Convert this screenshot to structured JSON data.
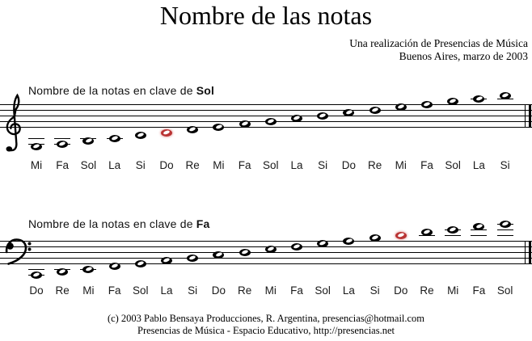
{
  "title": "Nombre de las notas",
  "subtitle": {
    "line1": "Una realización de Presencias de Música",
    "line2": "Buenos Aires, marzo de 2003"
  },
  "staves": [
    {
      "name": "sol",
      "clef": "treble",
      "header_prefix": "Nombre de la notas en clave de ",
      "clef_label": "Sol",
      "notes": [
        "Mi",
        "Fa",
        "Sol",
        "La",
        "Si",
        "Do",
        "Re",
        "Mi",
        "Fa",
        "Sol",
        "La",
        "Si",
        "Do",
        "Re",
        "Mi",
        "Fa",
        "Sol",
        "La",
        "Si"
      ],
      "red_index": 5
    },
    {
      "name": "fa",
      "clef": "bass",
      "header_prefix": "Nombre de la notas en clave de ",
      "clef_label": "Fa",
      "notes": [
        "Do",
        "Re",
        "Mi",
        "Fa",
        "Sol",
        "La",
        "Si",
        "Do",
        "Re",
        "Mi",
        "Fa",
        "Sol",
        "La",
        "Si",
        "Do",
        "Re",
        "Mi",
        "Fa",
        "Sol"
      ],
      "red_index": 14
    }
  ],
  "footer": {
    "line1": "(c) 2003 Pablo Bensaya Producciones, R. Argentina, presencias@hotmail.com",
    "line2": "Presencias de Música - Espacio Educativo, http://presencias.net"
  },
  "colors": {
    "highlight_note": "#b93333",
    "ink": "#000000"
  }
}
